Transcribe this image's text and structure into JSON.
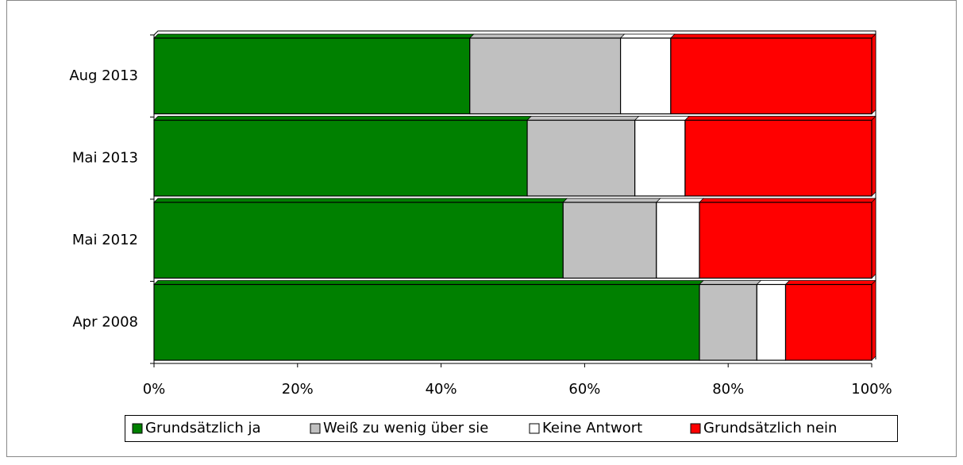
{
  "chart_data": {
    "type": "bar",
    "orientation": "horizontal",
    "stacked": true,
    "categories": [
      "Aug 2013",
      "Mai 2013",
      "Mai 2012",
      "Apr 2008"
    ],
    "series": [
      {
        "name": "Grundsätzlich ja",
        "color": "#008000",
        "values": [
          44,
          52,
          57,
          76
        ]
      },
      {
        "name": "Weiß zu wenig über sie",
        "color": "#c0c0c0",
        "values": [
          21,
          15,
          13,
          8
        ]
      },
      {
        "name": "Keine Antwort",
        "color": "#ffffff",
        "values": [
          7,
          7,
          6,
          4
        ]
      },
      {
        "name": "Grundsätzlich nein",
        "color": "#ff0000",
        "values": [
          28,
          26,
          24,
          12
        ]
      }
    ],
    "xlim": [
      0,
      100
    ],
    "xticks": [
      {
        "value": 0,
        "label": "0%"
      },
      {
        "value": 20,
        "label": "20%"
      },
      {
        "value": 40,
        "label": "40%"
      },
      {
        "value": 60,
        "label": "60%"
      },
      {
        "value": 80,
        "label": "80%"
      },
      {
        "value": 100,
        "label": "100%"
      }
    ],
    "legend": "bottom"
  }
}
